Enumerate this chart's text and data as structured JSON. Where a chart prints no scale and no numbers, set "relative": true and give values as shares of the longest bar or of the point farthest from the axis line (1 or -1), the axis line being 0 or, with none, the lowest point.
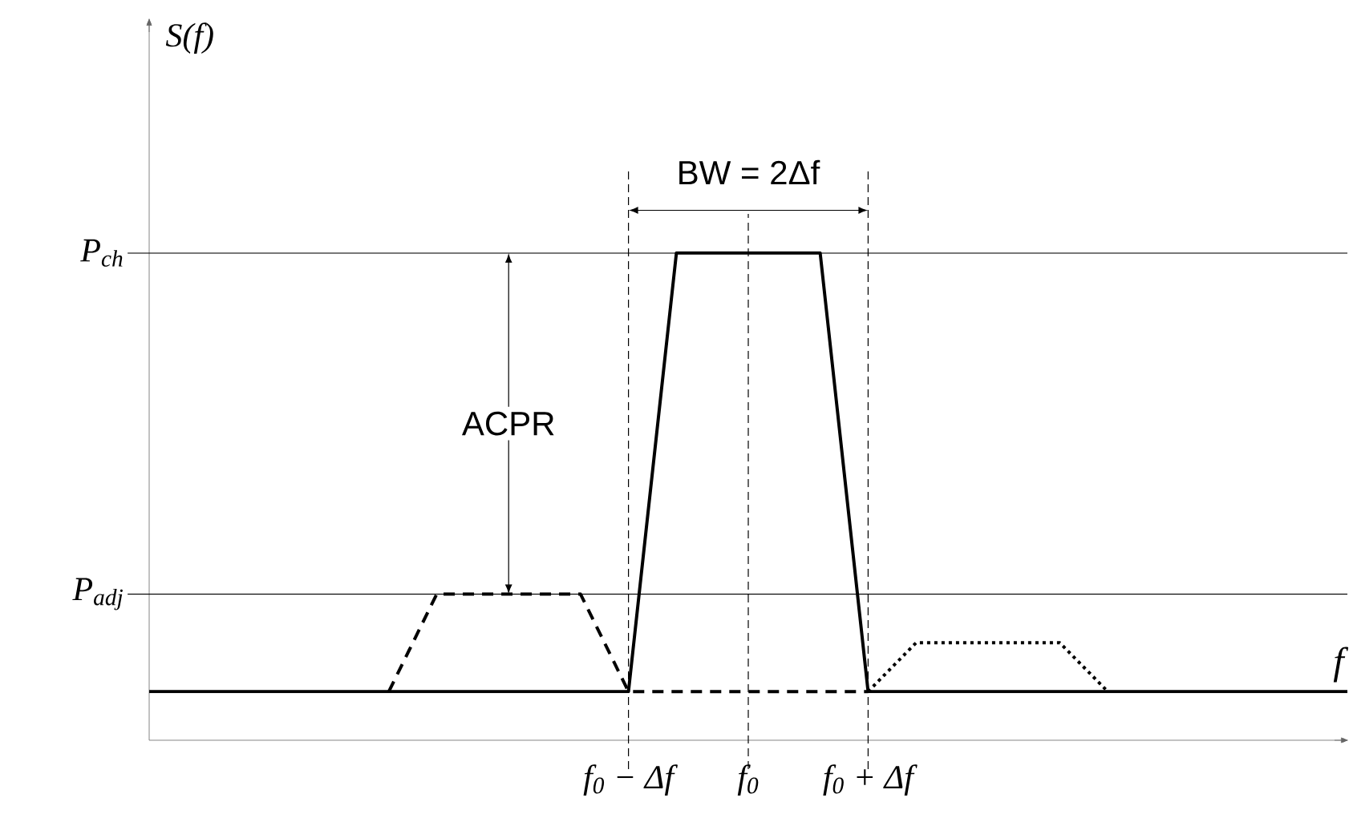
{
  "chart_data": {
    "type": "line",
    "relative": true,
    "grid": "x",
    "xlabel": "f",
    "categories": [
      null,
      null,
      null,
      null,
      null,
      null,
      null,
      null,
      null,
      null,
      null,
      null,
      null,
      null,
      null,
      null,
      null,
      null,
      null,
      null,
      "f$_{0}$ − Δf",
      null,
      null,
      null,
      null,
      "f$_{0}$",
      null,
      null,
      null,
      null,
      "f$_{0}$ + Δf",
      null,
      null,
      null,
      null,
      null,
      null,
      null,
      null,
      null,
      null,
      null,
      null,
      null,
      null,
      null,
      null,
      null,
      null,
      null,
      null
    ],
    "series": [
      {
        "color": "#000000",
        "line_style": "solid",
        "values": [
          0.1,
          0.1,
          0.1,
          0.1,
          0.1,
          0.1,
          0.1,
          0.1,
          0.1,
          0.1,
          0.1,
          0.1,
          0.1,
          0.1,
          0.1,
          0.1,
          0.1,
          0.1,
          0.1,
          0.1,
          0.1,
          0.55,
          1,
          1,
          1,
          1,
          1,
          1,
          1,
          0.55,
          0.1,
          0.1,
          0.1,
          0.1,
          0.1,
          0.1,
          0.1,
          0.1,
          0.1,
          0.1,
          0.1,
          0.1,
          0.1,
          0.1,
          0.1,
          0.1,
          0.1,
          0.1,
          0.1,
          0.1,
          0.1
        ]
      },
      {
        "color": "#000000",
        "line_style": "dashed",
        "values": [
          null,
          null,
          null,
          null,
          null,
          null,
          null,
          null,
          null,
          null,
          0.1,
          0.2,
          0.3,
          0.3,
          0.3,
          0.3,
          0.3,
          0.3,
          0.3,
          0.2,
          0.1,
          0.1,
          0.1,
          0.1,
          0.1,
          0.1,
          0.1,
          0.1,
          0.1,
          0.1,
          0.1,
          null,
          null,
          null,
          null,
          null,
          null,
          null,
          null,
          null,
          null,
          null,
          null,
          null,
          null,
          null,
          null,
          null,
          null,
          null,
          null
        ]
      },
      {
        "color": "#000000",
        "line_style": "dotted",
        "values": [
          null,
          null,
          null,
          null,
          null,
          null,
          null,
          null,
          null,
          null,
          null,
          null,
          null,
          null,
          null,
          null,
          null,
          null,
          null,
          null,
          null,
          null,
          null,
          null,
          null,
          null,
          null,
          null,
          null,
          null,
          0.1,
          0.15,
          0.2,
          0.2,
          0.2,
          0.2,
          0.2,
          0.2,
          0.2,
          0.15,
          0.1,
          null,
          null,
          null,
          null,
          null,
          null,
          null,
          null,
          null,
          null
        ]
      }
    ],
    "ref_lines": [
      {
        "axis": "y",
        "value": 1,
        "line_style": "solid",
        "label": "P$_{ch}$"
      },
      {
        "axis": "y",
        "value": 0.3,
        "line_style": "solid",
        "label": "P$_{adj}$"
      }
    ],
    "annotations": [
      "BW = 2Δf",
      "ACPR",
      "S(f)"
    ]
  }
}
